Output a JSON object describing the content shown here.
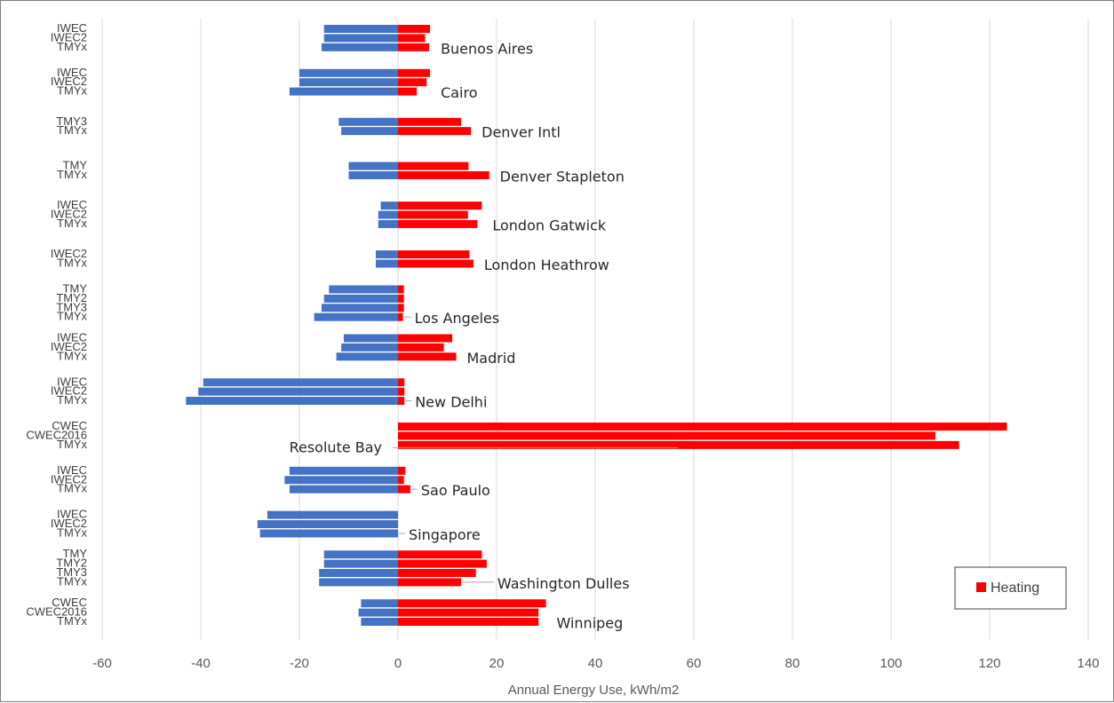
{
  "chart_data": {
    "type": "bar",
    "orientation": "horizontal",
    "title": "",
    "xlabel": "Annual Energy Use, kWh/m2",
    "ylabel": "",
    "xlim": [
      -60,
      140
    ],
    "xticks": [
      -60,
      -40,
      -20,
      0,
      20,
      40,
      60,
      80,
      100,
      120,
      140
    ],
    "grid": "vertical",
    "legend": {
      "placement": "bottom-right",
      "entries": [
        {
          "name": "Heating",
          "color": "#ff0000"
        }
      ]
    },
    "series": [
      {
        "name": "",
        "color": "#4472c4"
      },
      {
        "name": "Heating",
        "color": "#ff0000"
      }
    ],
    "groups": [
      {
        "city": "Buenos Aires",
        "rows": [
          {
            "label": "IWEC",
            "values": [
              -15,
              6.5
            ]
          },
          {
            "label": "IWEC2",
            "values": [
              -15,
              5.5
            ]
          },
          {
            "label": "TMYx",
            "values": [
              -15.5,
              6.3
            ]
          }
        ]
      },
      {
        "city": "Cairo",
        "rows": [
          {
            "label": "IWEC",
            "values": [
              -20,
              6.5
            ]
          },
          {
            "label": "IWEC2",
            "values": [
              -20,
              5.8
            ]
          },
          {
            "label": "TMYx",
            "values": [
              -22,
              3.8
            ]
          }
        ]
      },
      {
        "city": "Denver Intl",
        "rows": [
          {
            "label": "TMY3",
            "values": [
              -12,
              12.8
            ]
          },
          {
            "label": "TMYx",
            "values": [
              -11.5,
              14.8
            ]
          }
        ]
      },
      {
        "city": "Denver Stapleton",
        "rows": [
          {
            "label": "TMY",
            "values": [
              -10,
              14.3
            ]
          },
          {
            "label": "TMYx",
            "values": [
              -10,
              18.5
            ]
          }
        ]
      },
      {
        "city": "London Gatwick",
        "rows": [
          {
            "label": "IWEC",
            "values": [
              -3.5,
              17
            ]
          },
          {
            "label": "IWEC2",
            "values": [
              -4,
              14.2
            ]
          },
          {
            "label": "TMYx",
            "values": [
              -4,
              16.1
            ]
          }
        ]
      },
      {
        "city": "London Heathrow",
        "rows": [
          {
            "label": "IWEC2",
            "values": [
              -4.5,
              14.5
            ]
          },
          {
            "label": "TMYx",
            "values": [
              -4.5,
              15.3
            ]
          }
        ]
      },
      {
        "city": "Los Angeles",
        "rows": [
          {
            "label": "TMY",
            "values": [
              -14,
              1.2
            ]
          },
          {
            "label": "TMY2",
            "values": [
              -15,
              1.2
            ]
          },
          {
            "label": "TMY3",
            "values": [
              -15.5,
              1.2
            ]
          },
          {
            "label": "TMYx",
            "values": [
              -17,
              1
            ]
          }
        ]
      },
      {
        "city": "Madrid",
        "rows": [
          {
            "label": "IWEC",
            "values": [
              -11,
              11
            ]
          },
          {
            "label": "IWEC2",
            "values": [
              -11.5,
              9.3
            ]
          },
          {
            "label": "TMYx",
            "values": [
              -12.5,
              11.8
            ]
          }
        ]
      },
      {
        "city": "New Delhi",
        "rows": [
          {
            "label": "IWEC",
            "values": [
              -39.5,
              1.3
            ]
          },
          {
            "label": "IWEC2",
            "values": [
              -40.5,
              1.3
            ]
          },
          {
            "label": "TMYx",
            "values": [
              -43,
              1.3
            ]
          }
        ]
      },
      {
        "city": "Resolute Bay",
        "rows": [
          {
            "label": "CWEC",
            "values": [
              0,
              123.5
            ]
          },
          {
            "label": "CWEC2016",
            "values": [
              0,
              109
            ]
          },
          {
            "label": "TMYx",
            "values": [
              0,
              113.8
            ]
          }
        ]
      },
      {
        "city": "Sao Paulo",
        "rows": [
          {
            "label": "IWEC",
            "values": [
              -22,
              1.5
            ]
          },
          {
            "label": "IWEC2",
            "values": [
              -23,
              1.2
            ]
          },
          {
            "label": "TMYx",
            "values": [
              -22,
              2.5
            ]
          }
        ]
      },
      {
        "city": "Singapore",
        "rows": [
          {
            "label": "IWEC",
            "values": [
              -26.5,
              0
            ]
          },
          {
            "label": "IWEC2",
            "values": [
              -28.5,
              0
            ]
          },
          {
            "label": "TMYx",
            "values": [
              -28,
              0
            ]
          }
        ]
      },
      {
        "city": "Washington Dulles",
        "rows": [
          {
            "label": "TMY",
            "values": [
              -15,
              17
            ]
          },
          {
            "label": "TMY2",
            "values": [
              -15,
              18
            ]
          },
          {
            "label": "TMY3",
            "values": [
              -16,
              15.8
            ]
          },
          {
            "label": "TMYx",
            "values": [
              -16,
              12.8
            ]
          }
        ]
      },
      {
        "city": "Winnipeg",
        "rows": [
          {
            "label": "CWEC",
            "values": [
              -7.5,
              30
            ]
          },
          {
            "label": "CWEC2016",
            "values": [
              -8,
              28.5
            ]
          },
          {
            "label": "TMYx",
            "values": [
              -7.5,
              28.5
            ]
          }
        ]
      }
    ]
  }
}
